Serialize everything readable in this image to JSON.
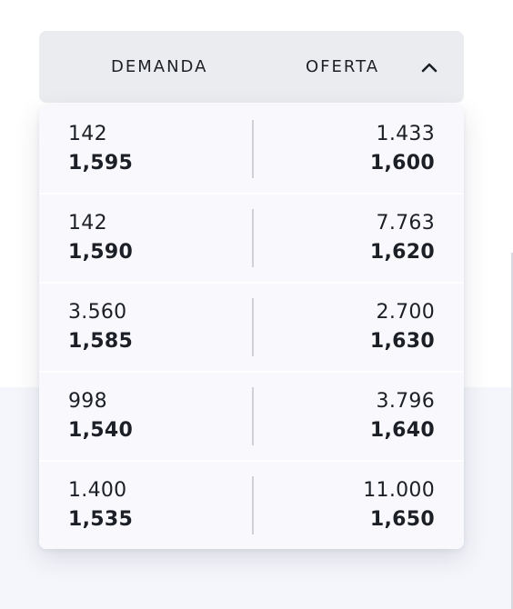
{
  "header": {
    "demand_label": "DEMANDA",
    "offer_label": "OFERTA",
    "toggle_icon": "chevron-up-icon"
  },
  "rows": [
    {
      "bid_qty": "142",
      "bid_price": "1,595",
      "ask_qty": "1.433",
      "ask_price": "1,600"
    },
    {
      "bid_qty": "142",
      "bid_price": "1,590",
      "ask_qty": "7.763",
      "ask_price": "1,620"
    },
    {
      "bid_qty": "3.560",
      "bid_price": "1,585",
      "ask_qty": "2.700",
      "ask_price": "1,630"
    },
    {
      "bid_qty": "998",
      "bid_price": "1,540",
      "ask_qty": "3.796",
      "ask_price": "1,640"
    },
    {
      "bid_qty": "1.400",
      "bid_price": "1,535",
      "ask_qty": "11.000",
      "ask_price": "1,650"
    }
  ],
  "colors": {
    "header_bg": "#ebecf0",
    "row_bg": "#f9f9fd",
    "text": "#1c1f26",
    "divider": "#cfd1d7"
  }
}
